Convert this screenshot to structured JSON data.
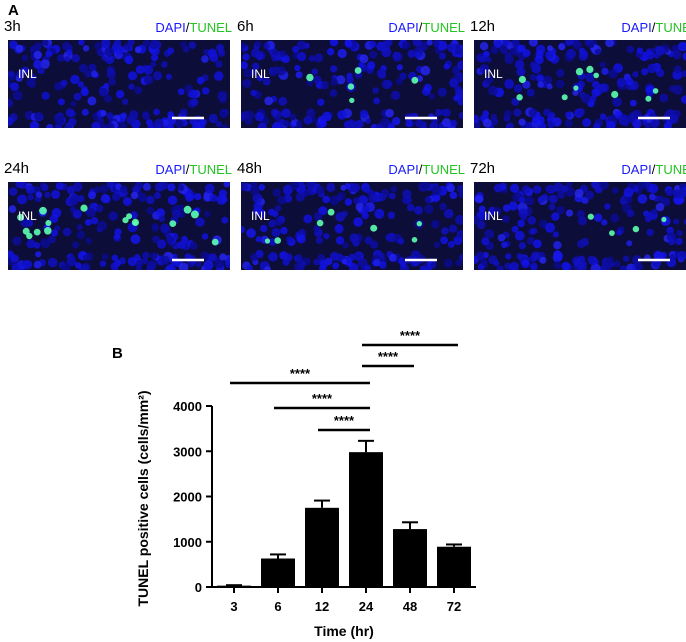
{
  "panel_a": {
    "letter": "A",
    "stain_dapi": "DAPI",
    "stain_sep": "/",
    "stain_tunel": "TUNEL",
    "layer_label": "INL",
    "tiles": [
      {
        "time": "3h",
        "tunel_density": 0
      },
      {
        "time": "6h",
        "tunel_density": 5
      },
      {
        "time": "12h",
        "tunel_density": 10
      },
      {
        "time": "24h",
        "tunel_density": 16
      },
      {
        "time": "48h",
        "tunel_density": 7
      },
      {
        "time": "72h",
        "tunel_density": 4
      }
    ]
  },
  "panel_b": {
    "letter": "B"
  },
  "chart_data": {
    "type": "bar",
    "xlabel": "Time (hr)",
    "ylabel": "TUNEL positive cells (cells/mm²)",
    "categories": [
      "3",
      "6",
      "12",
      "24",
      "48",
      "72"
    ],
    "values": [
      30,
      630,
      1750,
      2980,
      1280,
      890
    ],
    "errors": [
      10,
      90,
      160,
      250,
      150,
      50
    ],
    "ylim": [
      0,
      4000
    ],
    "yticks": [
      0,
      1000,
      2000,
      3000,
      4000
    ],
    "bar_color": "#000000",
    "significance": [
      {
        "from": "3",
        "to": "24",
        "label": "****"
      },
      {
        "from": "6",
        "to": "24",
        "label": "****"
      },
      {
        "from": "12",
        "to": "24",
        "label": "****"
      },
      {
        "from": "24",
        "to": "48",
        "label": "****"
      },
      {
        "from": "24",
        "to": "72",
        "label": "****"
      }
    ]
  }
}
